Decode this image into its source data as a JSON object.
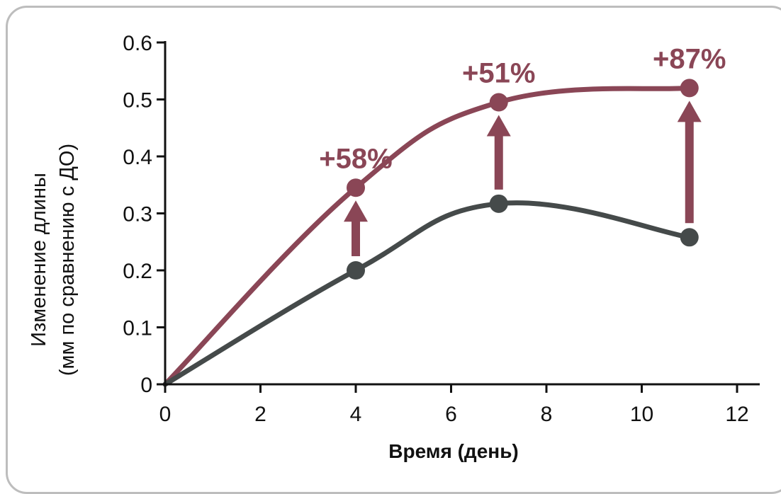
{
  "chart_data": {
    "type": "line",
    "xlabel": "Время (день)",
    "ylabel": [
      "Изменение длины",
      "(мм по сравнению с ДО)"
    ],
    "xlim": [
      0,
      12
    ],
    "ylim": [
      0,
      0.6
    ],
    "xticks": [
      0,
      2,
      4,
      6,
      8,
      10,
      12
    ],
    "yticks": [
      {
        "value": 0,
        "label": "0"
      },
      {
        "value": 0.1,
        "label": "0.1"
      },
      {
        "value": 0.2,
        "label": "0.2"
      },
      {
        "value": 0.3,
        "label": "0.3"
      },
      {
        "value": 0.4,
        "label": "0.4"
      },
      {
        "value": 0.5,
        "label": "0.5"
      },
      {
        "value": 0.6,
        "label": "0.6"
      }
    ],
    "grid": false,
    "series": [
      {
        "id": "upper",
        "color": "#8a4656",
        "points": [
          [
            0,
            0
          ],
          [
            4,
            0.345
          ],
          [
            7,
            0.495
          ],
          [
            11,
            0.52
          ]
        ]
      },
      {
        "id": "lower",
        "color": "#454a4a",
        "points": [
          [
            0,
            0
          ],
          [
            4,
            0.2
          ],
          [
            7,
            0.317
          ],
          [
            11,
            0.258
          ]
        ]
      }
    ],
    "annotations": [
      {
        "x": 4,
        "text": "+58%"
      },
      {
        "x": 7,
        "text": "+51%"
      },
      {
        "x": 11,
        "text": "+87%"
      }
    ]
  }
}
